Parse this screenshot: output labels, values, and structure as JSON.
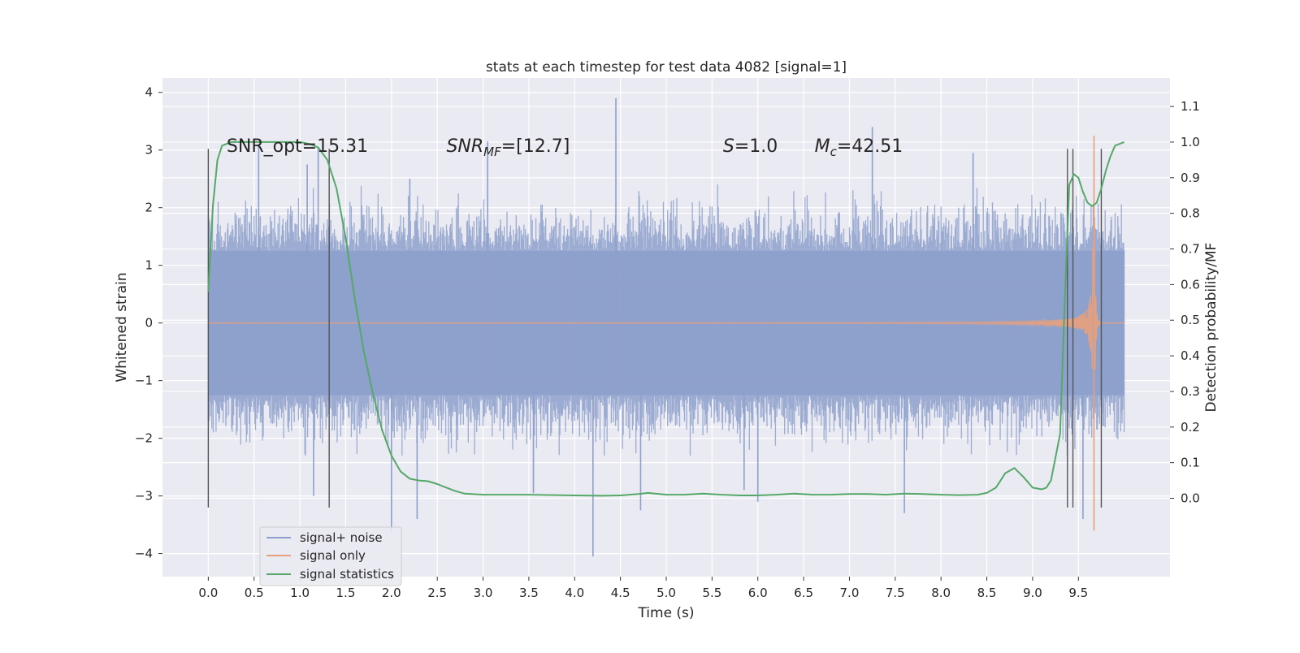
{
  "chart_data": {
    "type": "line",
    "title": "stats at each timestep for test data 4082 [signal=1]",
    "xlabel": "Time (s)",
    "ylabel": "Whitened strain",
    "y2label": "Detection probability/MF",
    "xlim": [
      -0.5,
      10.5
    ],
    "ylim": [
      -4.4,
      4.25
    ],
    "y2lim": [
      -0.22,
      1.18
    ],
    "xticks": [
      0.0,
      0.5,
      1.0,
      1.5,
      2.0,
      2.5,
      3.0,
      3.5,
      4.0,
      4.5,
      5.0,
      5.5,
      6.0,
      6.5,
      7.0,
      7.5,
      8.0,
      8.5,
      9.0,
      9.5
    ],
    "xtick_labels": [
      "0.0",
      "0.5",
      "1.0",
      "1.5",
      "2.0",
      "2.5",
      "3.0",
      "3.5",
      "4.0",
      "4.5",
      "5.0",
      "5.5",
      "6.0",
      "6.5",
      "7.0",
      "7.5",
      "8.0",
      "8.5",
      "9.0",
      "9.5"
    ],
    "yticks": [
      4,
      3,
      2,
      1,
      0,
      -1,
      -2,
      -3,
      -4
    ],
    "ytick_labels": [
      "4",
      "3",
      "2",
      "1",
      "0",
      "−1",
      "−2",
      "−3",
      "−4"
    ],
    "y2ticks": [
      1.1,
      1.0,
      0.9,
      0.8,
      0.7,
      0.6,
      0.5,
      0.4,
      0.3,
      0.2,
      0.1,
      0.0
    ],
    "y2tick_labels": [
      "1.1",
      "1.0",
      "0.9",
      "0.8",
      "0.7",
      "0.6",
      "0.5",
      "0.4",
      "0.3",
      "0.2",
      "0.1",
      "0.0"
    ],
    "grid": true,
    "legend_position": "lower-left",
    "background_color": "#eaeaf2",
    "series": [
      {
        "name": "signal+ noise",
        "color": "#8da0cb",
        "kind": "noisy-strain",
        "x_range": [
          0.0,
          10.0
        ],
        "band_typical": [
          -1.25,
          1.25
        ],
        "envelope": [
          -2.3,
          2.4
        ],
        "spikes": [
          {
            "x": 0.55,
            "y": 3.1
          },
          {
            "x": 1.2,
            "y": 3.05
          },
          {
            "x": 2.2,
            "y": 2.5
          },
          {
            "x": 2.0,
            "y": -3.65
          },
          {
            "x": 3.05,
            "y": 3.15
          },
          {
            "x": 4.2,
            "y": -4.05
          },
          {
            "x": 4.45,
            "y": 3.9
          },
          {
            "x": 4.72,
            "y": -3.25
          },
          {
            "x": 6.0,
            "y": -3.1
          },
          {
            "x": 7.25,
            "y": 3.4
          },
          {
            "x": 7.6,
            "y": -3.3
          },
          {
            "x": 8.35,
            "y": 2.95
          },
          {
            "x": 9.55,
            "y": -3.4
          },
          {
            "x": 1.08,
            "y": 2.75
          },
          {
            "x": 3.55,
            "y": -2.95
          },
          {
            "x": 5.85,
            "y": -2.9
          },
          {
            "x": 1.15,
            "y": -3.0
          },
          {
            "x": 2.28,
            "y": -3.4
          }
        ]
      },
      {
        "name": "signal only",
        "color": "#e8a07c",
        "kind": "chirp",
        "x_range": [
          0.0,
          10.0
        ],
        "merger_x": 9.67,
        "peak_y": [
          -3.6,
          3.25
        ]
      },
      {
        "name": "signal statistics",
        "color": "#55a868",
        "axis": "right",
        "x": [
          0.0,
          0.05,
          0.1,
          0.15,
          0.25,
          0.5,
          0.8,
          1.0,
          1.1,
          1.2,
          1.3,
          1.4,
          1.5,
          1.6,
          1.7,
          1.8,
          1.9,
          2.0,
          2.1,
          2.2,
          2.3,
          2.4,
          2.5,
          2.6,
          2.7,
          2.8,
          3.0,
          3.5,
          4.0,
          4.3,
          4.5,
          4.7,
          4.8,
          5.0,
          5.2,
          5.4,
          5.6,
          5.8,
          6.0,
          6.2,
          6.4,
          6.6,
          6.8,
          7.0,
          7.2,
          7.4,
          7.6,
          7.8,
          8.0,
          8.2,
          8.4,
          8.5,
          8.6,
          8.7,
          8.8,
          8.9,
          9.0,
          9.1,
          9.15,
          9.2,
          9.3,
          9.35,
          9.4,
          9.45,
          9.5,
          9.55,
          9.6,
          9.65,
          9.7,
          9.75,
          9.8,
          9.85,
          9.9,
          10.0
        ],
        "y": [
          0.58,
          0.82,
          0.95,
          0.99,
          1.0,
          1.0,
          1.0,
          1.0,
          0.995,
          0.985,
          0.95,
          0.87,
          0.73,
          0.56,
          0.41,
          0.29,
          0.19,
          0.12,
          0.075,
          0.055,
          0.05,
          0.048,
          0.04,
          0.03,
          0.02,
          0.013,
          0.01,
          0.01,
          0.008,
          0.007,
          0.008,
          0.012,
          0.015,
          0.01,
          0.01,
          0.013,
          0.01,
          0.008,
          0.008,
          0.01,
          0.013,
          0.01,
          0.01,
          0.012,
          0.012,
          0.01,
          0.013,
          0.012,
          0.01,
          0.009,
          0.01,
          0.015,
          0.03,
          0.07,
          0.085,
          0.06,
          0.03,
          0.025,
          0.03,
          0.05,
          0.18,
          0.55,
          0.88,
          0.91,
          0.9,
          0.86,
          0.83,
          0.82,
          0.83,
          0.87,
          0.92,
          0.96,
          0.99,
          1.0
        ]
      }
    ],
    "vertical_lines": [
      0.0,
      1.32,
      9.38,
      9.44,
      9.75
    ],
    "vertical_line_range": [
      -3.2,
      3.02
    ],
    "annotations": [
      {
        "text": "SNR_opt=15.31",
        "x": 0.2,
        "y": 3.05,
        "axis": "left"
      },
      {
        "text": "SNR_MF=[12.7]",
        "x": 2.6,
        "y": 3.05,
        "axis": "left"
      },
      {
        "text": "S=1.0",
        "x": 5.62,
        "y": 3.05,
        "axis": "left"
      },
      {
        "text": "M_c=42.51",
        "x": 6.62,
        "y": 3.05,
        "axis": "left"
      }
    ]
  }
}
